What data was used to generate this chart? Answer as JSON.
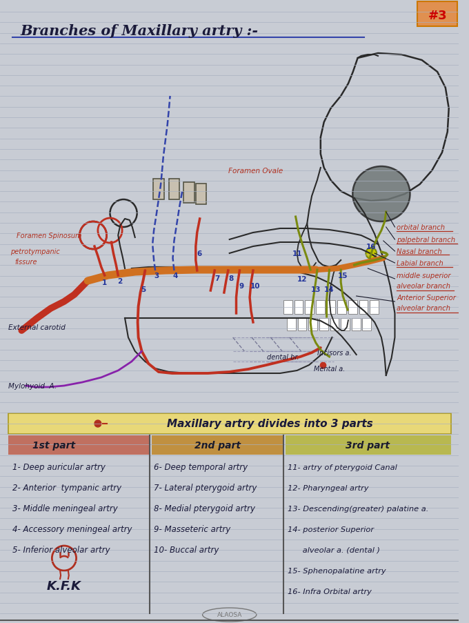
{
  "title": "Branches of Maxillary artry :-",
  "page_number": "#3",
  "bg_color": "#c8ccd4",
  "line_color": "#a8b0c0",
  "text_color_main": "#1a1a3a",
  "text_color_red": "#b03020",
  "text_color_blue": "#22338a",
  "divides_label": "Maxillary artry divides into 3 parts",
  "part1_label": "1st part",
  "part2_label": "2nd part",
  "part3_label": "3rd part",
  "part1_bg": "#d48080",
  "part2_bg": "#d4a060",
  "part3_bg": "#c8c870",
  "part1_hdr_bg": "#c07060",
  "part2_hdr_bg": "#c09040",
  "part3_hdr_bg": "#b8b850",
  "part1_items": [
    "1- Deep auricular artry",
    "2- Anterior  tympanic artry",
    "3- Middle meningeal artry",
    "4- Accessory meningeal artry",
    "5- Inferior alveolar artry"
  ],
  "part2_items": [
    "6- Deep temporal artry",
    "7- Lateral pterygoid artry",
    "8- Medial pterygoid artry",
    "9- Masseteric artry",
    "10- Buccal artry"
  ],
  "part3_items": [
    "11- artry of pterygoid Canal",
    "12- Pharyngeal artry",
    "13- Descending(greater) palatine a.",
    "14- posterior Superior",
    "      alveolar a. (dental )",
    "15- Sphenopalatine artry",
    "16- Infra Orbital artry"
  ]
}
